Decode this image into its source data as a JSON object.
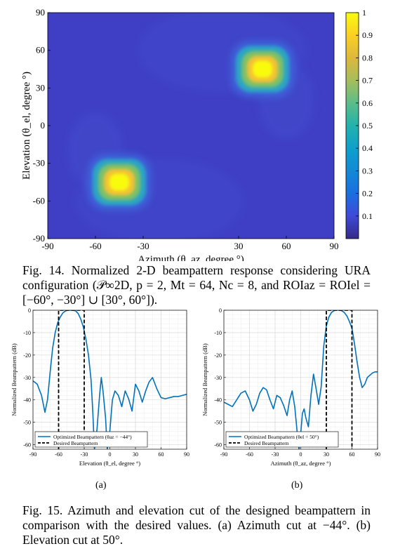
{
  "fig14": {
    "chart_data": {
      "type": "heatmap",
      "xlabel": "Azimuth (θ_az, degree °)",
      "ylabel": "Elevation (θ_el, degree °)",
      "xlim": [
        -90,
        90
      ],
      "ylim": [
        -90,
        90
      ],
      "x_ticks": [
        "-90",
        "-60",
        "-30",
        "30",
        "60",
        "90"
      ],
      "y_ticks": [
        "90",
        "60",
        "30",
        "0",
        "-30",
        "-60",
        "-90"
      ],
      "colorbar_ticks": [
        "1",
        "0.9",
        "0.8",
        "0.7",
        "0.6",
        "0.5",
        "0.4",
        "0.3",
        "0.2",
        "0.1"
      ],
      "colorbar_range": [
        0,
        1
      ],
      "colormap": "parula",
      "peaks": [
        {
          "azimuth": 45,
          "elevation": 45,
          "value": 1.0
        },
        {
          "azimuth": -45,
          "elevation": -45,
          "value": 1.0
        }
      ],
      "background_level": 0.03
    },
    "caption": {
      "label": "Fig. 14.",
      "text": "Normalized 2-D beampattern response considering URA configuration (𝒫∞2D, p = 2, Mt = 64, Nc = 8, and ROIaz = ROIel = [−60°, −30°] ∪ [30°, 60°])."
    }
  },
  "fig15": {
    "chart_data": [
      {
        "type": "line",
        "panel": "(a)",
        "xlabel": "Elevation (θ_el, degree °)",
        "ylabel": "Normalized Beampattern (dB)",
        "xlim": [
          -90,
          90
        ],
        "ylim": [
          -62,
          0
        ],
        "x_ticks": [
          "-90",
          "-60",
          "-30",
          "0",
          "30",
          "60",
          "90"
        ],
        "y_ticks": [
          "0",
          "-10",
          "-20",
          "-30",
          "-40",
          "-50",
          "-60"
        ],
        "grid": true,
        "legend_position": "bottom-left",
        "series": [
          {
            "name": "Optimized Beampattern (θaz = −44°)",
            "color": "#0072BD",
            "style": "solid",
            "x": [
              -90,
              -85,
              -80,
              -76,
              -73,
              -70,
              -67,
              -64,
              -61,
              -58,
              -55,
              -52,
              -49,
              -46,
              -43,
              -40,
              -37,
              -34,
              -31,
              -28,
              -25,
              -22,
              -20,
              -18,
              -15,
              -12,
              -10,
              -8,
              -5,
              -3,
              0,
              3,
              6,
              10,
              14,
              18,
              22,
              26,
              30,
              34,
              38,
              42,
              46,
              50,
              55,
              60,
              65,
              70,
              75,
              80,
              85,
              90
            ],
            "y": [
              -31.5,
              -33,
              -38,
              -45.5,
              -40,
              -28,
              -17,
              -10,
              -5.5,
              -3,
              -1.2,
              -0.3,
              0,
              0,
              0,
              -0.3,
              -1.5,
              -4,
              -7.5,
              -13,
              -20,
              -31,
              -45,
              -62,
              -53,
              -38,
              -30,
              -36,
              -48,
              -62,
              -54,
              -40,
              -36,
              -38,
              -43,
              -36,
              -39.5,
              -45,
              -33,
              -36,
              -41,
              -36,
              -32,
              -30,
              -35,
              -39,
              -39.5,
              -39,
              -38.5,
              -38.5,
              -38,
              -37.5
            ]
          },
          {
            "name": "Desired Beampattern",
            "color": "#000000",
            "style": "dashed",
            "x": [
              -60,
              -60,
              -30,
              -30
            ],
            "y": [
              -62,
              0,
              0,
              -62
            ]
          }
        ]
      },
      {
        "type": "line",
        "panel": "(b)",
        "xlabel": "Azimuth (θ_az, degree °)",
        "ylabel": "Normalized Beampattern (dB)",
        "xlim": [
          -90,
          90
        ],
        "ylim": [
          -62,
          0
        ],
        "x_ticks": [
          "-90",
          "-60",
          "-30",
          "0",
          "30",
          "60",
          "90"
        ],
        "y_ticks": [
          "0",
          "-10",
          "-20",
          "-30",
          "-40",
          "-50",
          "-60"
        ],
        "grid": true,
        "legend_position": "bottom-left",
        "series": [
          {
            "name": "Optimized Beampattern (θel = 50°)",
            "color": "#0072BD",
            "style": "solid",
            "x": [
              -90,
              -85,
              -80,
              -75,
              -70,
              -65,
              -60,
              -56,
              -52,
              -48,
              -44,
              -40,
              -36,
              -32,
              -28,
              -24,
              -20,
              -16,
              -13,
              -10,
              -7,
              -4,
              -2,
              0,
              2,
              4,
              6,
              9,
              12,
              15,
              18,
              21,
              24,
              27,
              30,
              33,
              36,
              39,
              42,
              45,
              48,
              51,
              54,
              57,
              60,
              63,
              66,
              69,
              72,
              75,
              78,
              81,
              84,
              87,
              90
            ],
            "y": [
              -41,
              -42,
              -43,
              -40,
              -37,
              -36,
              -40,
              -45,
              -42,
              -37,
              -34.5,
              -35.5,
              -40,
              -44,
              -38,
              -39,
              -42.5,
              -47,
              -40,
              -36,
              -43,
              -55,
              -62,
              -55,
              -46,
              -44,
              -48,
              -52,
              -38,
              -28.5,
              -35,
              -42,
              -34,
              -16,
              -7,
              -3,
              -1,
              -0.2,
              0,
              0,
              -0.2,
              -1,
              -2.5,
              -5,
              -8,
              -15,
              -23,
              -30,
              -34.5,
              -33,
              -30,
              -29,
              -28,
              -27.5,
              -27.5
            ]
          },
          {
            "name": "Desired Beampattern",
            "color": "#000000",
            "style": "dashed",
            "x": [
              30,
              30,
              60,
              60
            ],
            "y": [
              -62,
              0,
              0,
              -62
            ]
          }
        ]
      }
    ],
    "caption": {
      "label": "Fig. 15.",
      "text": "Azimuth and elevation cut of the designed beampattern in comparison with the desired values. (a) Azimuth cut at −44°. (b) Elevation cut at 50°."
    },
    "panel_labels": [
      "(a)",
      "(b)"
    ]
  }
}
